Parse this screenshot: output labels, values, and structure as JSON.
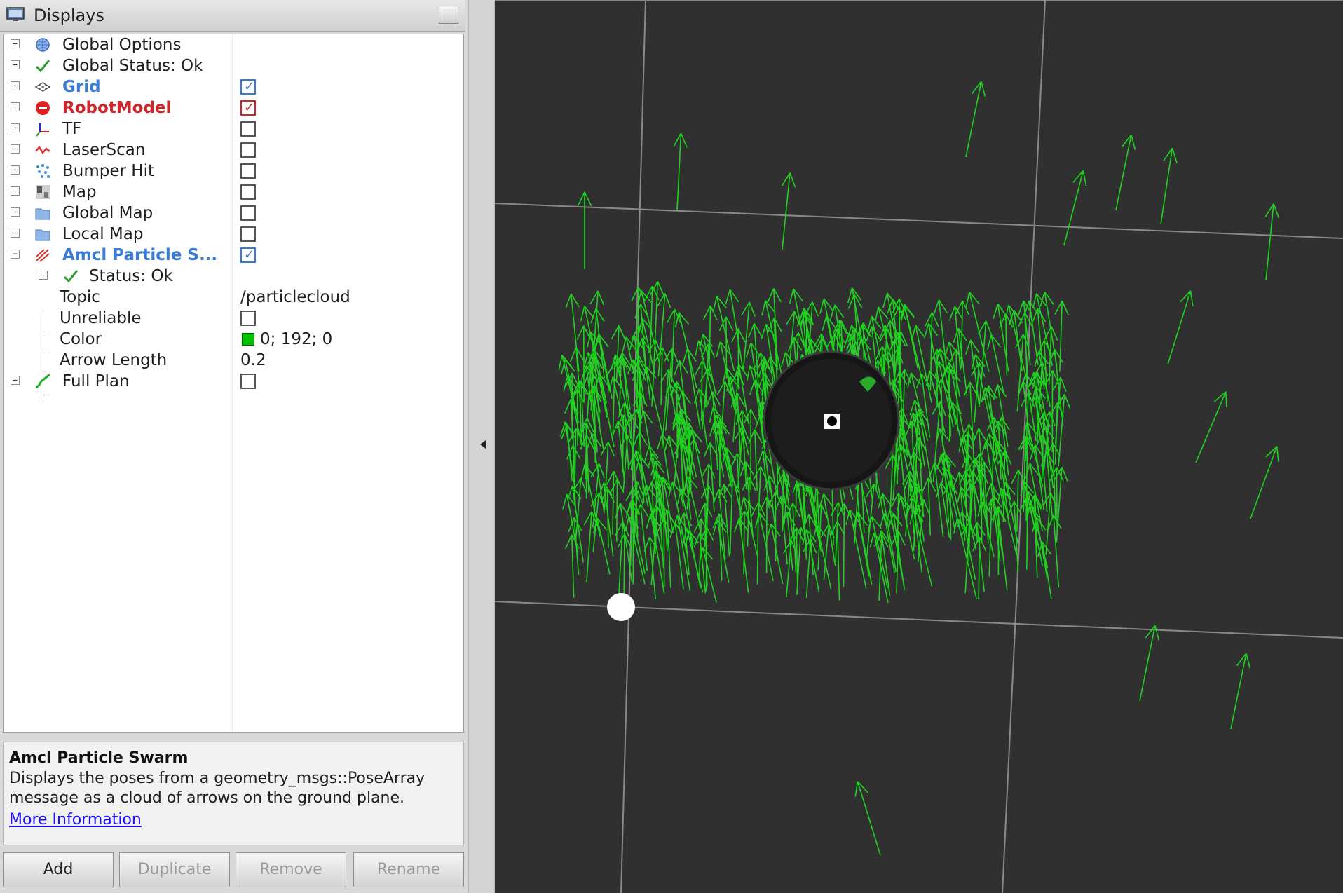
{
  "panel": {
    "title": "Displays"
  },
  "tree": {
    "items": [
      {
        "label": "Global Options",
        "icon": "globe-icon"
      },
      {
        "label": "Global Status: Ok",
        "icon": "check-icon"
      },
      {
        "label": "Grid",
        "icon": "grid-icon",
        "checked": true
      },
      {
        "label": "RobotModel",
        "icon": "robot-model-icon",
        "checked": true
      },
      {
        "label": "TF",
        "icon": "tf-axes-icon",
        "checked": false
      },
      {
        "label": "LaserScan",
        "icon": "laser-scan-icon",
        "checked": false
      },
      {
        "label": "Bumper Hit",
        "icon": "bumper-hit-icon",
        "checked": false
      },
      {
        "label": "Map",
        "icon": "map-icon",
        "checked": false
      },
      {
        "label": "Global Map",
        "icon": "folder-icon",
        "checked": false
      },
      {
        "label": "Local Map",
        "icon": "folder-icon",
        "checked": false
      },
      {
        "label": "Amcl Particle S...",
        "icon": "particle-swarm-icon",
        "checked": true
      },
      {
        "label": "Status: Ok",
        "icon": "check-icon"
      },
      {
        "label": "Topic",
        "value": "/particlecloud"
      },
      {
        "label": "Unreliable",
        "checked": false
      },
      {
        "label": "Color",
        "value": "0; 192; 0"
      },
      {
        "label": "Arrow Length",
        "value": "0.2"
      },
      {
        "label": "Full Plan",
        "icon": "path-icon",
        "checked": false
      }
    ]
  },
  "description": {
    "title": "Amcl Particle Swarm",
    "text": "Displays the poses from a geometry_msgs::PoseArray message as a cloud of arrows on the ground plane.",
    "link": "More Information"
  },
  "buttons": {
    "add": "Add",
    "duplicate": "Duplicate",
    "remove": "Remove",
    "rename": "Rename"
  },
  "colors": {
    "particle_arrow": "#1fd21f",
    "grid_line": "#8a8a8a",
    "viewport_bg": "#303030",
    "accent_blue": "#3a7bd5",
    "accent_red": "#d0262b"
  }
}
